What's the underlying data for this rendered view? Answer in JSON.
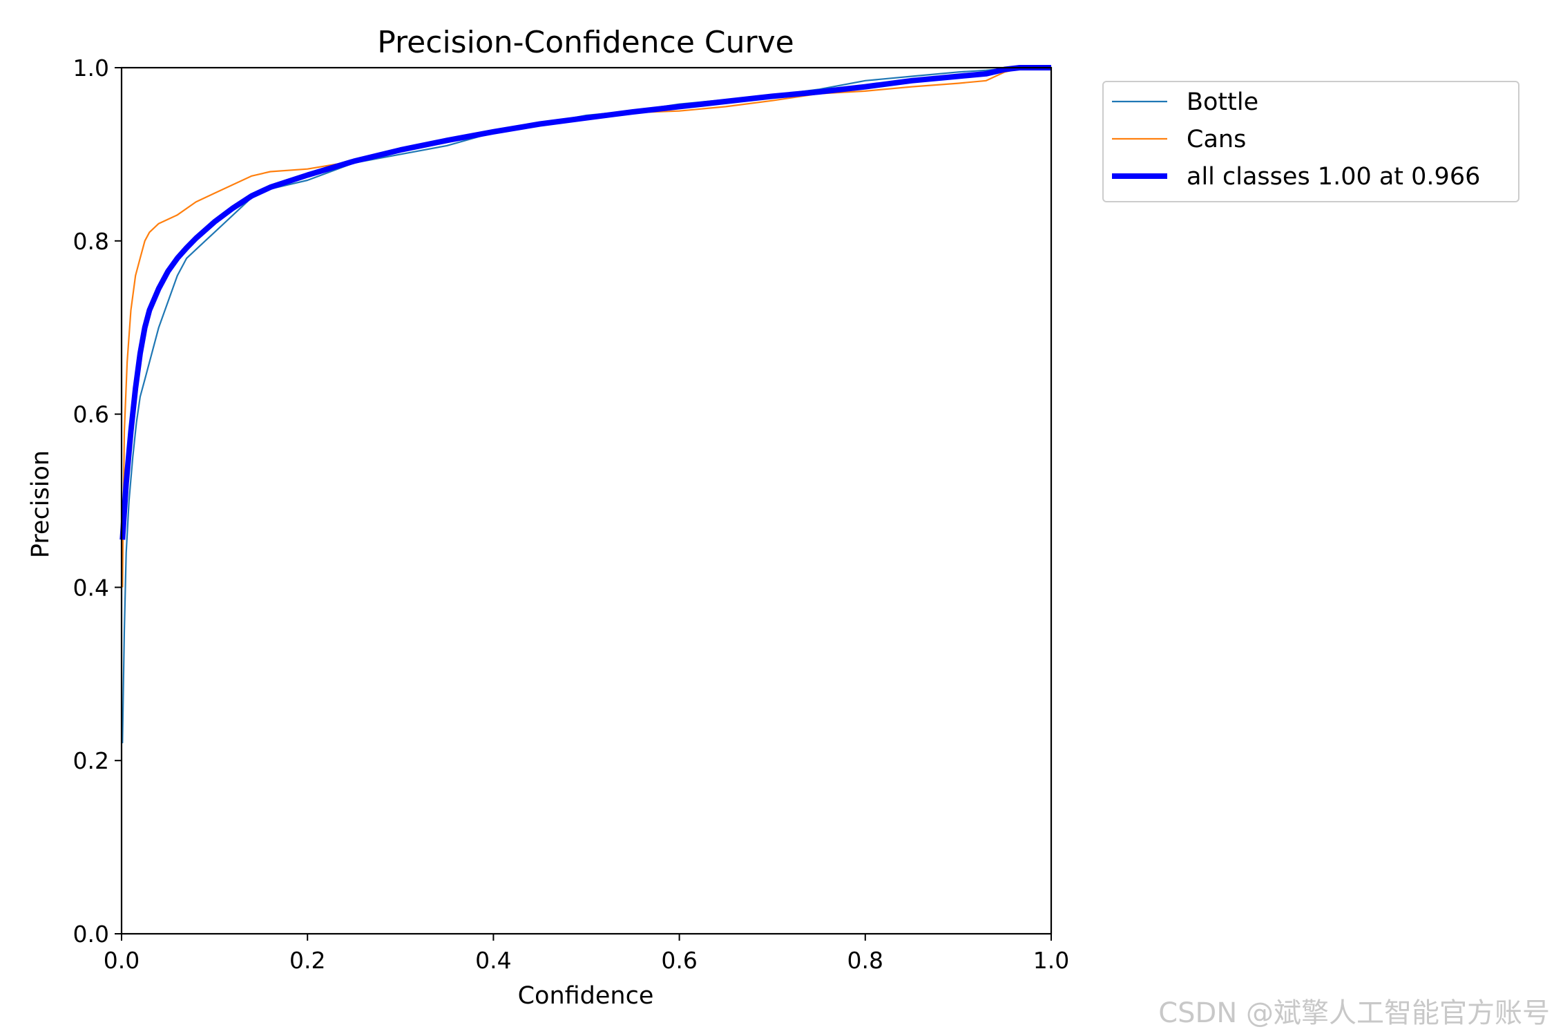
{
  "chart_data": {
    "type": "line",
    "title": "Precision-Confidence Curve",
    "xlabel": "Confidence",
    "ylabel": "Precision",
    "xlim": [
      0,
      1
    ],
    "ylim": [
      0,
      1
    ],
    "xticks": [
      "0.0",
      "0.2",
      "0.4",
      "0.6",
      "0.8",
      "1.0"
    ],
    "yticks": [
      "0.0",
      "0.2",
      "0.4",
      "0.6",
      "0.8",
      "1.0"
    ],
    "grid": false,
    "legend_position": "outside-top-right",
    "series": [
      {
        "name": "Bottle",
        "color": "#1f77b4",
        "x": [
          0.001,
          0.003,
          0.005,
          0.008,
          0.012,
          0.016,
          0.02,
          0.025,
          0.03,
          0.035,
          0.04,
          0.05,
          0.06,
          0.07,
          0.08,
          0.09,
          0.1,
          0.12,
          0.14,
          0.16,
          0.18,
          0.2,
          0.25,
          0.3,
          0.35,
          0.4,
          0.45,
          0.5,
          0.55,
          0.6,
          0.65,
          0.7,
          0.75,
          0.8,
          0.85,
          0.9,
          0.93,
          0.95,
          0.97,
          1.0
        ],
        "y": [
          0.22,
          0.35,
          0.44,
          0.5,
          0.55,
          0.59,
          0.62,
          0.64,
          0.66,
          0.68,
          0.7,
          0.73,
          0.76,
          0.78,
          0.79,
          0.8,
          0.81,
          0.83,
          0.85,
          0.86,
          0.865,
          0.87,
          0.89,
          0.9,
          0.91,
          0.925,
          0.935,
          0.945,
          0.95,
          0.958,
          0.963,
          0.968,
          0.975,
          0.985,
          0.99,
          0.995,
          0.997,
          0.999,
          1.0,
          1.0
        ]
      },
      {
        "name": "Cans",
        "color": "#ff7f0e",
        "x": [
          0.001,
          0.003,
          0.006,
          0.01,
          0.015,
          0.02,
          0.025,
          0.03,
          0.04,
          0.05,
          0.06,
          0.08,
          0.1,
          0.12,
          0.14,
          0.16,
          0.2,
          0.25,
          0.3,
          0.35,
          0.4,
          0.45,
          0.5,
          0.55,
          0.6,
          0.65,
          0.7,
          0.75,
          0.8,
          0.85,
          0.9,
          0.93,
          0.95,
          0.97,
          1.0
        ],
        "y": [
          0.4,
          0.58,
          0.66,
          0.72,
          0.76,
          0.78,
          0.8,
          0.81,
          0.82,
          0.825,
          0.83,
          0.845,
          0.855,
          0.865,
          0.875,
          0.88,
          0.883,
          0.892,
          0.905,
          0.918,
          0.925,
          0.935,
          0.942,
          0.948,
          0.95,
          0.955,
          0.962,
          0.97,
          0.973,
          0.978,
          0.982,
          0.985,
          0.995,
          1.0,
          1.0
        ]
      },
      {
        "name": "all classes 1.00 at 0.966",
        "color": "#0000ff",
        "x": [
          0.001,
          0.005,
          0.01,
          0.015,
          0.02,
          0.025,
          0.03,
          0.04,
          0.05,
          0.06,
          0.07,
          0.08,
          0.1,
          0.12,
          0.14,
          0.16,
          0.2,
          0.25,
          0.3,
          0.35,
          0.4,
          0.45,
          0.5,
          0.55,
          0.6,
          0.65,
          0.7,
          0.75,
          0.8,
          0.85,
          0.9,
          0.93,
          0.95,
          0.966,
          1.0
        ],
        "y": [
          0.455,
          0.52,
          0.58,
          0.63,
          0.67,
          0.7,
          0.72,
          0.745,
          0.765,
          0.78,
          0.792,
          0.803,
          0.822,
          0.838,
          0.852,
          0.862,
          0.876,
          0.892,
          0.905,
          0.916,
          0.926,
          0.935,
          0.942,
          0.949,
          0.955,
          0.961,
          0.967,
          0.972,
          0.978,
          0.985,
          0.99,
          0.993,
          0.998,
          1.0,
          1.0
        ]
      }
    ]
  },
  "watermark": "CSDN @斌擎人工智能官方账号"
}
